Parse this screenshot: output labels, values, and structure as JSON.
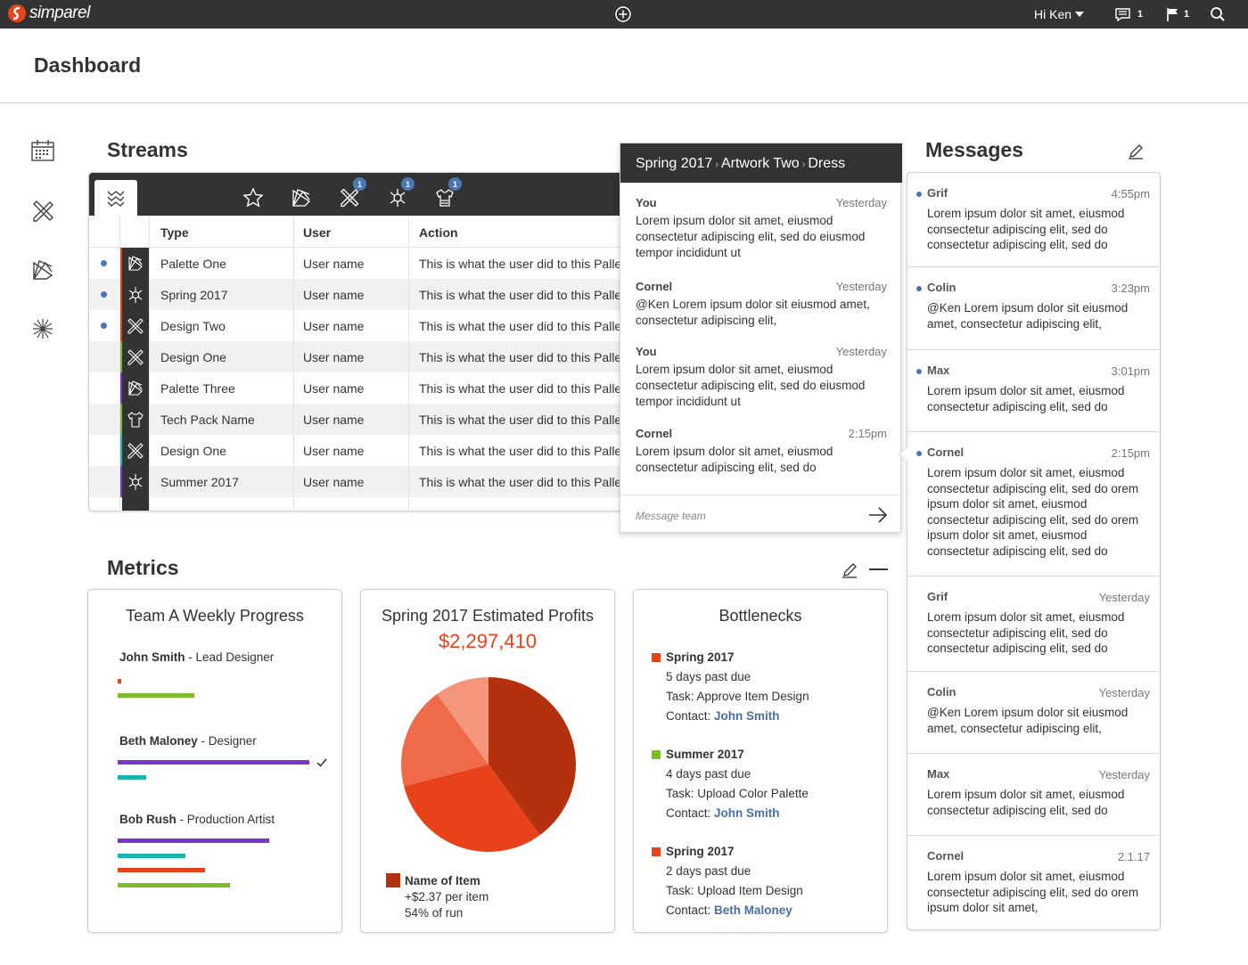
{
  "app": {
    "brand": "simparel",
    "greeting": "Hi Ken",
    "messages_count": "1",
    "flags_count": "1"
  },
  "page": {
    "title": "Dashboard"
  },
  "streams": {
    "title": "Streams",
    "tab_badges": [
      "1",
      "1",
      "1"
    ],
    "columns": [
      "Type",
      "User",
      "Action"
    ],
    "rows": [
      {
        "type": "Palette One",
        "user": "User name",
        "action": "This is what the user did to this Pallet",
        "unread": true,
        "color": "#e8421b",
        "icon": "palette-icon"
      },
      {
        "type": "Spring 2017",
        "user": "User name",
        "action": "This is what the user did to this Pallet",
        "unread": true,
        "color": "#e8421b",
        "icon": "season-icon"
      },
      {
        "type": "Design Two",
        "user": "User name",
        "action": "This is what the user did to this Pallet",
        "unread": true,
        "color": "#e8421b",
        "icon": "design-icon"
      },
      {
        "type": "Design One",
        "user": "User name",
        "action": "This is what the user did to this Pallet",
        "unread": false,
        "color": "#7cbc2b",
        "icon": "design-icon"
      },
      {
        "type": "Palette Three",
        "user": "User name",
        "action": "This is what the user did to this Pallet",
        "unread": false,
        "color": "#7a35c9",
        "icon": "palette-icon"
      },
      {
        "type": "Tech Pack Name",
        "user": "User name",
        "action": "This is what the user did to this Pallet",
        "unread": false,
        "color": "#7cbc2b",
        "icon": "techpack-icon"
      },
      {
        "type": "Design One",
        "user": "User name",
        "action": "This is what the user did to this Pallet",
        "unread": false,
        "color": "#1ab5b0",
        "icon": "design-icon"
      },
      {
        "type": "Summer 2017",
        "user": "User name",
        "action": "This is what the user did to this Pallet",
        "unread": false,
        "color": "#7a35c9",
        "icon": "season-icon"
      }
    ]
  },
  "thread": {
    "breadcrumb": [
      "Spring 2017",
      "Artwork Two",
      "Dress"
    ],
    "messages": [
      {
        "who": "You",
        "when": "Yesterday",
        "text": "Lorem ipsum dolor sit amet, eiusmod consectetur adipiscing elit, sed do eiusmod tempor incididunt ut"
      },
      {
        "who": "Cornel",
        "when": "Yesterday",
        "text": "@Ken Lorem ipsum dolor sit eiusmod amet, consectetur adipiscing elit,"
      },
      {
        "who": "You",
        "when": "Yesterday",
        "text": "Lorem ipsum dolor sit amet, eiusmod consectetur adipiscing elit, sed do eiusmod tempor incididunt ut"
      },
      {
        "who": "Cornel",
        "when": "2:15pm",
        "text": "Lorem ipsum dolor sit amet, eiusmod consectetur adipiscing elit, sed do"
      }
    ],
    "input_placeholder": "Message team"
  },
  "messages": {
    "title": "Messages",
    "items": [
      {
        "who": "Grif",
        "when": "4:55pm",
        "unread": true,
        "text": "Lorem ipsum dolor sit amet, eiusmod consectetur adipiscing elit, sed do consectetur adipiscing elit, sed do"
      },
      {
        "who": "Colin",
        "when": "3:23pm",
        "unread": true,
        "text": "@Ken Lorem ipsum dolor sit eiusmod amet, consectetur adipiscing elit,"
      },
      {
        "who": "Max",
        "when": "3:01pm",
        "unread": true,
        "text": "Lorem ipsum dolor sit amet, eiusmod consectetur adipiscing elit, sed do"
      },
      {
        "who": "Cornel",
        "when": "2:15pm",
        "unread": true,
        "text": "Lorem ipsum dolor sit amet, eiusmod consectetur adipiscing elit, sed do orem ipsum dolor sit amet, eiusmod consectetur adipiscing elit, sed do orem ipsum dolor sit amet, eiusmod consectetur adipiscing elit, sed do"
      },
      {
        "who": "Grif",
        "when": "Yesterday",
        "unread": false,
        "text": "Lorem ipsum dolor sit amet, eiusmod consectetur adipiscing elit, sed do consectetur adipiscing elit, sed do"
      },
      {
        "who": "Colin",
        "when": "Yesterday",
        "unread": false,
        "text": "@Ken Lorem ipsum dolor sit eiusmod amet, consectetur adipiscing elit,"
      },
      {
        "who": "Max",
        "when": "Yesterday",
        "unread": false,
        "text": "Lorem ipsum dolor sit amet, eiusmod consectetur adipiscing elit, sed do"
      },
      {
        "who": "Cornel",
        "when": "2.1.17",
        "unread": false,
        "text": "Lorem ipsum dolor sit amet, eiusmod consectetur adipiscing elit, sed do orem ipsum dolor sit amet,"
      }
    ]
  },
  "metrics": {
    "title": "Metrics",
    "progress": {
      "title": "Team A Weekly Progress",
      "people": [
        {
          "name": "John Smith",
          "role": " - Lead Designer",
          "done": false,
          "bars": [
            {
              "color": "#e8421b",
              "fraction": 0.017
            },
            {
              "color": "#7cbc2b",
              "fraction": 0.4
            }
          ]
        },
        {
          "name": "Beth Maloney",
          "role": " - Designer",
          "done": true,
          "bars": [
            {
              "color": "#7a35c9",
              "fraction": 1.0
            },
            {
              "color": "#1ab5b0",
              "fraction": 0.149
            }
          ]
        },
        {
          "name": "Bob Rush",
          "role": " - Production Artist",
          "done": false,
          "bars": [
            {
              "color": "#7a35c9",
              "fraction": 0.793
            },
            {
              "color": "#1ab5b0",
              "fraction": 0.355
            },
            {
              "color": "#e8421b",
              "fraction": 0.458
            },
            {
              "color": "#7cbc2b",
              "fraction": 0.586
            }
          ]
        }
      ]
    },
    "profits": {
      "title": "Spring 2017 Estimated Profits",
      "amount": "$2,297,410",
      "legend": {
        "name": "Name of Item",
        "per_item": "+$2.37 per item",
        "share": "54% of run",
        "color": "#b5310e"
      }
    },
    "bottlenecks": {
      "title": "Bottlenecks",
      "items": [
        {
          "title": "Spring 2017",
          "color": "#e8421b",
          "due": "5 days past due",
          "task": "Task: Approve Item Design",
          "contact_label": "Contact: ",
          "contact": "John Smith"
        },
        {
          "title": "Summer 2017",
          "color": "#7cbc2b",
          "due": "4 days past due",
          "task": "Task: Upload Color Palette",
          "contact_label": "Contact: ",
          "contact": "John Smith"
        },
        {
          "title": "Spring 2017",
          "color": "#e8421b",
          "due": "2 days past due",
          "task": "Task: Upload Item Design",
          "contact_label": "Contact: ",
          "contact": "Beth Maloney"
        }
      ]
    }
  },
  "chart_data": {
    "type": "pie",
    "values": [
      40,
      31,
      19,
      10
    ],
    "colors": [
      "#b5310e",
      "#e8421b",
      "#ef6a48",
      "#f3967b"
    ]
  }
}
